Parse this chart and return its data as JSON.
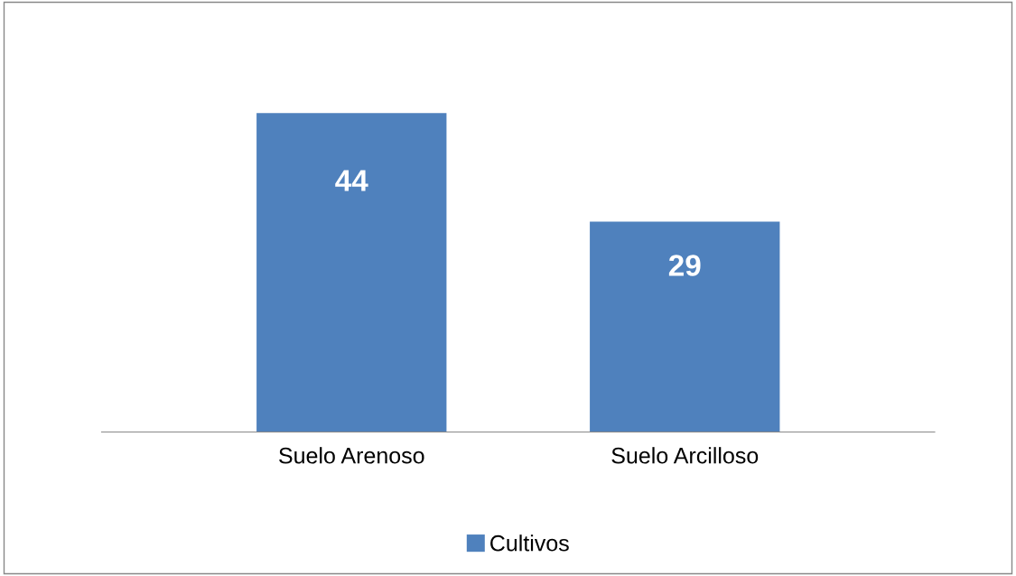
{
  "chart_data": {
    "type": "bar",
    "categories": [
      "Suelo Arenoso",
      "Suelo Arcilloso"
    ],
    "series": [
      {
        "name": "Cultivos",
        "color": "#4f81bd",
        "values": [
          44,
          29
        ]
      }
    ],
    "data_labels": true,
    "legend": "bottom",
    "grid": false
  }
}
